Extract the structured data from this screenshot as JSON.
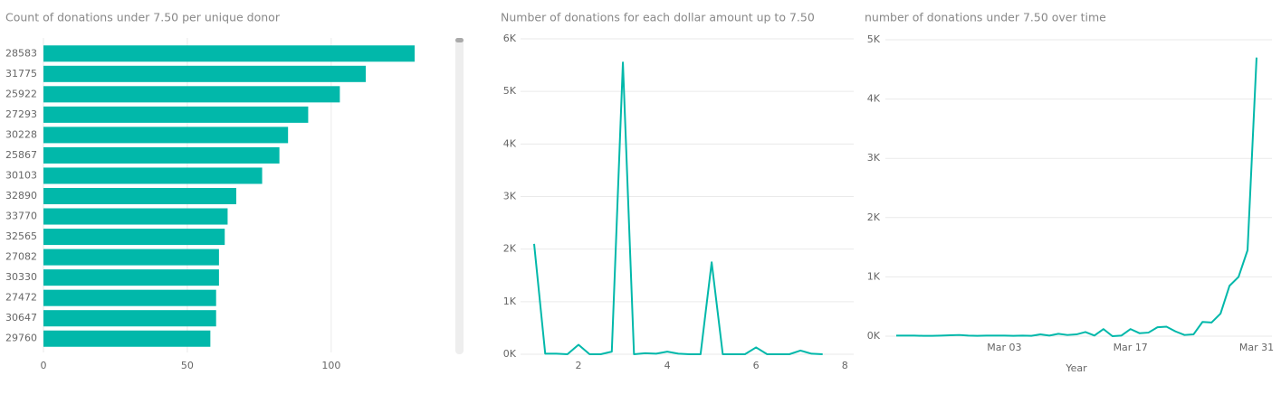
{
  "chart_data": [
    {
      "type": "bar",
      "orientation": "horizontal",
      "title": "Count of donations under 7.50 per unique donor",
      "categories": [
        "28583",
        "31775",
        "25922",
        "27293",
        "30228",
        "25867",
        "30103",
        "32890",
        "33770",
        "32565",
        "27082",
        "30330",
        "27472",
        "30647",
        "29760"
      ],
      "values": [
        129,
        112,
        103,
        92,
        85,
        82,
        76,
        67,
        64,
        63,
        61,
        61,
        60,
        60,
        58
      ],
      "color": "#01b8aa",
      "xlim": [
        0,
        140
      ],
      "xticks": [
        0,
        50,
        100
      ],
      "grid": true
    },
    {
      "type": "line",
      "title": "Number of donations for each dollar amount up to 7.50",
      "x": [
        1,
        1.25,
        1.5,
        1.75,
        2,
        2.25,
        2.5,
        2.75,
        3,
        3.25,
        3.5,
        3.75,
        4,
        4.25,
        4.5,
        4.75,
        5,
        5.25,
        5.5,
        5.75,
        6,
        6.25,
        6.5,
        6.75,
        7,
        7.25,
        7.5
      ],
      "series": [
        {
          "color": "#01b8aa",
          "values": [
            2100,
            10,
            10,
            0,
            180,
            0,
            0,
            50,
            5550,
            0,
            20,
            10,
            50,
            10,
            0,
            0,
            1750,
            0,
            0,
            0,
            130,
            0,
            0,
            0,
            70,
            10,
            0
          ]
        }
      ],
      "xlim": [
        1,
        8.2
      ],
      "xticks": [
        2,
        4,
        6,
        8
      ],
      "ylim": [
        0,
        6000
      ],
      "yticks": [
        {
          "value": 0,
          "label": "0K"
        },
        {
          "value": 1000,
          "label": "1K"
        },
        {
          "value": 2000,
          "label": "2K"
        },
        {
          "value": 3000,
          "label": "3K"
        },
        {
          "value": 4000,
          "label": "4K"
        },
        {
          "value": 5000,
          "label": "5K"
        },
        {
          "value": 6000,
          "label": "6K"
        }
      ],
      "grid": true
    },
    {
      "type": "line",
      "title": "number of donations under 7.50 over time",
      "x_label": "Year",
      "categories": [
        null,
        null,
        null,
        null,
        null,
        null,
        null,
        null,
        null,
        null,
        null,
        null,
        "Mar 03",
        null,
        null,
        null,
        null,
        null,
        null,
        null,
        null,
        null,
        null,
        null,
        null,
        null,
        "Mar 17",
        null,
        null,
        null,
        null,
        null,
        null,
        null,
        null,
        null,
        null,
        null,
        null,
        null,
        "Mar 31"
      ],
      "series": [
        {
          "color": "#01b8aa",
          "values": [
            10,
            10,
            10,
            5,
            5,
            10,
            15,
            20,
            10,
            5,
            10,
            10,
            10,
            5,
            10,
            5,
            30,
            10,
            40,
            20,
            30,
            70,
            10,
            120,
            0,
            10,
            120,
            50,
            60,
            150,
            160,
            80,
            20,
            30,
            240,
            230,
            380,
            850,
            1000,
            1450,
            4700
          ]
        }
      ],
      "ylim": [
        0,
        5000
      ],
      "yticks": [
        {
          "value": 0,
          "label": "0K"
        },
        {
          "value": 1000,
          "label": "1K"
        },
        {
          "value": 2000,
          "label": "2K"
        },
        {
          "value": 3000,
          "label": "3K"
        },
        {
          "value": 4000,
          "label": "4K"
        },
        {
          "value": 5000,
          "label": "5K"
        }
      ],
      "grid": true
    }
  ]
}
